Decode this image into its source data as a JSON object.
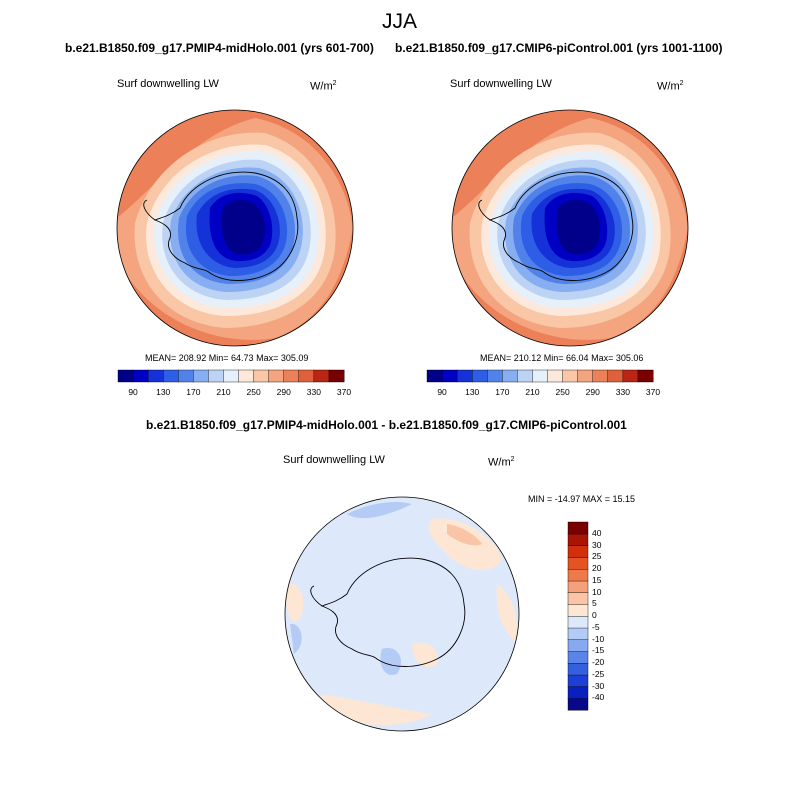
{
  "page": {
    "title": "JJA"
  },
  "panels": [
    {
      "case_title": "b.e21.B1850.f09_g17.PMIP4-midHolo.001 (yrs 601-700)",
      "variable": "Surf downwelling LW",
      "units_base": "W/m",
      "units_exp": "2",
      "stats": "MEAN= 208.92  Min=  64.73  Max= 305.09",
      "colorbar_labels": [
        "90",
        "130",
        "170",
        "210",
        "250",
        "290",
        "330",
        "370"
      ]
    },
    {
      "case_title": "b.e21.B1850.f09_g17.CMIP6-piControl.001 (yrs 1001-1100)",
      "variable": "Surf downwelling LW",
      "units_base": "W/m",
      "units_exp": "2",
      "stats": "MEAN= 210.12  Min=  66.04  Max= 305.06",
      "colorbar_labels": [
        "90",
        "130",
        "170",
        "210",
        "250",
        "290",
        "330",
        "370"
      ]
    }
  ],
  "difference": {
    "case_title": "b.e21.B1850.f09_g17.PMIP4-midHolo.001 - b.e21.B1850.f09_g17.CMIP6-piControl.001",
    "variable": "Surf downwelling LW",
    "units_base": "W/m",
    "units_exp": "2",
    "stats": "MIN = -14.97 MAX =  15.15",
    "colorbar_labels": [
      "40",
      "30",
      "25",
      "20",
      "15",
      "10",
      "5",
      "0",
      "-5",
      "-10",
      "-15",
      "-20",
      "-25",
      "-30",
      "-40"
    ]
  },
  "colors": {
    "abs_palette": [
      "#00008b",
      "#0000c4",
      "#1432d8",
      "#2e5ee6",
      "#5082ea",
      "#86aef0",
      "#bdd3f5",
      "#e6f0fb",
      "#fde9dc",
      "#f9c6a6",
      "#f4a47e",
      "#ec8058",
      "#e0603c",
      "#bb2514",
      "#780000"
    ],
    "diff_palette": [
      "#08088a",
      "#0a1fc0",
      "#1c3fd6",
      "#3460e0",
      "#5a84e8",
      "#87a9ef",
      "#b4cbf5",
      "#dde9fb",
      "#fde6d4",
      "#f9c5a6",
      "#f4a07a",
      "#ee7a4c",
      "#e55325",
      "#d22f0c",
      "#a81505",
      "#7a0000"
    ]
  }
}
